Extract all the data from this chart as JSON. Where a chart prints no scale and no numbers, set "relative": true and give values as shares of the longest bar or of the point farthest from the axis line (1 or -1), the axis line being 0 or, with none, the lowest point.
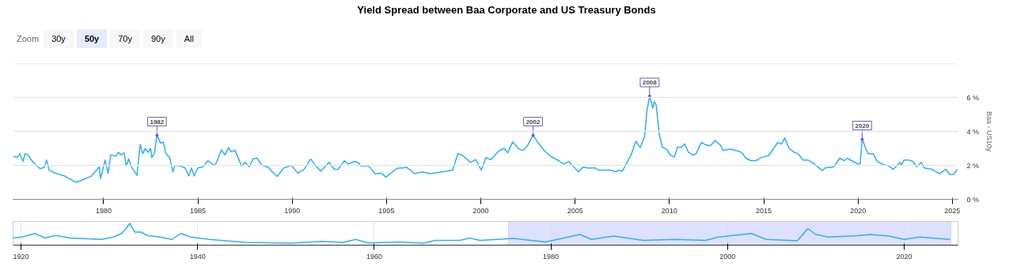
{
  "chart_data": [
    {
      "type": "line",
      "title": "Yield Spread between Baa Corporate and US Treasury Bonds",
      "ylabel": "Baa - US10y",
      "annotations": [
        "Zoom",
        "30y",
        "50y",
        "70y",
        "90y",
        "All",
        {
          "text": "1982",
          "x": 1982.83,
          "y": 3.77
        },
        {
          "text": "2002",
          "x": 2002.77,
          "y": 3.77
        },
        {
          "text": "2008",
          "x": 2008.95,
          "y": 6.08
        },
        {
          "text": "2020",
          "x": 2020.22,
          "y": 3.54
        }
      ],
      "series": [
        {
          "color": "#2caffe",
          "x": [
            1975.22,
            1975.42,
            1975.56,
            1975.73,
            1975.83,
            1976.0,
            1976.17,
            1976.44,
            1976.64,
            1976.85,
            1976.98,
            1977.12,
            1977.53,
            1977.93,
            1978.21,
            1978.55,
            1978.89,
            1979.36,
            1979.77,
            1979.84,
            1980.08,
            1980.24,
            1980.38,
            1980.65,
            1980.79,
            1980.92,
            1981.09,
            1981.2,
            1981.33,
            1981.47,
            1981.6,
            1981.77,
            1981.94,
            1982.08,
            1982.21,
            1982.35,
            1982.49,
            1982.55,
            1982.69,
            1982.83,
            1983.03,
            1983.17,
            1983.3,
            1983.51,
            1983.67,
            1983.78,
            1984.05,
            1984.32,
            1984.52,
            1984.66,
            1984.8,
            1985.0,
            1985.27,
            1985.54,
            1985.82,
            1985.95,
            1986.25,
            1986.43,
            1986.63,
            1986.77,
            1986.97,
            1987.31,
            1987.51,
            1987.72,
            1987.92,
            1988.13,
            1988.4,
            1988.74,
            1988.94,
            1989.21,
            1989.55,
            1989.96,
            1990.3,
            1990.64,
            1990.98,
            1991.25,
            1991.52,
            1991.96,
            1992.23,
            1992.43,
            1992.77,
            1992.97,
            1993.31,
            1993.51,
            1993.65,
            1994.05,
            1994.39,
            1994.73,
            1994.97,
            1995.27,
            1995.54,
            1996.08,
            1996.49,
            1996.89,
            1997.3,
            1997.97,
            1998.51,
            1998.78,
            1998.99,
            1999.46,
            1999.73,
            2000.03,
            2000.27,
            2000.54,
            2000.95,
            2001.24,
            2001.42,
            2001.69,
            2002.03,
            2002.23,
            2002.43,
            2002.77,
            2003.11,
            2003.38,
            2003.65,
            2004.12,
            2004.39,
            2004.66,
            2005.18,
            2005.41,
            2005.68,
            2006.08,
            2006.22,
            2006.89,
            2007.16,
            2007.3,
            2007.5,
            2007.7,
            2007.97,
            2008.22,
            2008.45,
            2008.68,
            2008.81,
            2008.95,
            2009.12,
            2009.19,
            2009.3,
            2009.46,
            2009.62,
            2009.86,
            2010.03,
            2010.27,
            2010.43,
            2010.61,
            2010.81,
            2011.01,
            2011.22,
            2011.42,
            2011.69,
            2011.89,
            2012.16,
            2012.43,
            2012.7,
            2012.84,
            2013.24,
            2013.65,
            2013.85,
            2014.05,
            2014.32,
            2014.59,
            2014.86,
            2015.27,
            2015.74,
            2015.95,
            2016.11,
            2016.35,
            2016.62,
            2016.82,
            2017.09,
            2017.36,
            2017.64,
            2018.11,
            2018.24,
            2018.72,
            2019.03,
            2019.26,
            2019.43,
            2019.66,
            2020.0,
            2020.11,
            2020.22,
            2020.41,
            2020.54,
            2020.81,
            2021.01,
            2021.28,
            2021.62,
            2021.86,
            2022.16,
            2022.23,
            2022.3,
            2022.43,
            2022.7,
            2022.91,
            2023.11,
            2023.35,
            2023.51,
            2023.92,
            2024.32,
            2024.66,
            2024.86,
            2025.07,
            2025.27
          ],
          "values": [
            2.54,
            2.46,
            2.69,
            2.23,
            2.69,
            2.62,
            2.31,
            2.0,
            1.8,
            1.88,
            2.31,
            1.69,
            1.51,
            1.38,
            1.2,
            1.0,
            1.15,
            1.38,
            1.92,
            1.23,
            2.31,
            1.54,
            2.62,
            2.54,
            2.77,
            2.62,
            2.74,
            1.97,
            2.38,
            1.92,
            1.69,
            1.42,
            3.23,
            2.69,
            3.0,
            2.77,
            3.0,
            2.46,
            2.69,
            3.77,
            3.31,
            3.38,
            2.69,
            2.46,
            1.62,
            2.0,
            1.97,
            1.85,
            1.38,
            1.85,
            1.38,
            1.85,
            1.92,
            2.28,
            2.03,
            2.08,
            2.92,
            2.62,
            3.05,
            2.8,
            2.89,
            1.97,
            2.18,
            1.92,
            2.38,
            2.43,
            2.0,
            1.88,
            1.62,
            1.35,
            1.85,
            2.0,
            1.54,
            1.77,
            2.38,
            1.97,
            1.66,
            2.18,
            1.77,
            1.77,
            2.28,
            2.08,
            2.23,
            2.15,
            1.97,
            1.97,
            1.51,
            1.54,
            1.31,
            1.57,
            1.82,
            1.88,
            1.51,
            1.62,
            1.51,
            1.62,
            1.72,
            2.69,
            2.62,
            2.18,
            2.34,
            1.72,
            2.46,
            2.34,
            2.85,
            3.0,
            2.74,
            3.38,
            2.95,
            2.89,
            3.08,
            3.77,
            3.23,
            2.85,
            2.58,
            2.28,
            2.08,
            2.23,
            1.62,
            1.89,
            1.85,
            1.85,
            1.72,
            1.72,
            1.62,
            1.72,
            1.66,
            2.08,
            2.62,
            3.42,
            3.05,
            3.69,
            5.23,
            6.08,
            5.38,
            5.77,
            5.54,
            3.85,
            3.08,
            2.95,
            2.62,
            2.49,
            3.08,
            3.05,
            3.26,
            2.77,
            2.62,
            2.69,
            3.35,
            3.23,
            3.15,
            3.46,
            3.2,
            2.89,
            2.95,
            2.85,
            2.74,
            2.43,
            2.28,
            2.28,
            2.46,
            2.58,
            3.35,
            3.26,
            3.62,
            3.0,
            2.77,
            2.69,
            2.31,
            2.31,
            2.12,
            1.69,
            1.85,
            1.92,
            2.43,
            2.28,
            2.43,
            2.28,
            2.08,
            2.08,
            3.54,
            3.0,
            2.69,
            2.69,
            2.23,
            2.08,
            1.97,
            1.77,
            2.08,
            2.18,
            2.0,
            2.31,
            2.31,
            2.23,
            1.92,
            2.18,
            1.85,
            1.77,
            1.51,
            1.77,
            1.46,
            1.46,
            1.77
          ]
        }
      ],
      "xlim": [
        1975.2,
        2025.3
      ],
      "xticks": [
        1980,
        1985,
        1990,
        1995,
        2000,
        2005,
        2010,
        2015,
        2020,
        2025
      ],
      "ylim": [
        0,
        8
      ],
      "yticks": [
        {
          "value": 0,
          "label": "0 %"
        },
        {
          "value": 2,
          "label": "2 %"
        },
        {
          "value": 4,
          "label": "4 %"
        },
        {
          "value": 6,
          "label": "6 %"
        },
        {
          "value": 8,
          "label": null
        }
      ],
      "grid": "y"
    },
    {
      "type": "line",
      "relative": true,
      "series": [
        {
          "color": "#2caffe",
          "x": [
            1919.1,
            1920.1,
            1921.6,
            1922.7,
            1923.9,
            1925.6,
            1929.1,
            1930.5,
            1931.4,
            1931.9,
            1932.3,
            1932.9,
            1933.6,
            1934.3,
            1935.7,
            1937.1,
            1938.1,
            1939.2,
            1941.3,
            1945.4,
            1950.6,
            1954.1,
            1956.5,
            1957.9,
            1959.3,
            1962.8,
            1965.6,
            1966.9,
            1969.7,
            1970.8,
            1972.0,
            1975.8,
            1977.7,
            1979.4,
            1983.3,
            1984.6,
            1987.1,
            1990.5,
            1994.0,
            1997.5,
            1999.0,
            2002.7,
            2004.4,
            2007.9,
            2009.1,
            2010.0,
            2011.4,
            2014.8,
            2016.1,
            2018.3,
            2020.0,
            2021.8,
            2025.2
          ],
          "values": [
            0.26,
            0.31,
            0.49,
            0.26,
            0.39,
            0.26,
            0.19,
            0.31,
            0.49,
            0.74,
            1.0,
            0.56,
            0.56,
            0.39,
            0.31,
            0.19,
            0.49,
            0.31,
            0.19,
            0.04,
            0.0,
            0.09,
            0.04,
            0.19,
            0.01,
            0.06,
            0.0,
            0.14,
            0.14,
            0.26,
            0.14,
            0.24,
            0.14,
            0.06,
            0.44,
            0.19,
            0.36,
            0.14,
            0.19,
            0.14,
            0.31,
            0.49,
            0.19,
            0.12,
            0.74,
            0.44,
            0.31,
            0.38,
            0.44,
            0.36,
            0.19,
            0.31,
            0.19
          ]
        }
      ],
      "xlim": [
        1919.1,
        2026.1
      ],
      "xticks": [
        1920,
        1940,
        1960,
        1980,
        2000,
        2020
      ],
      "bands": [
        {
          "axis": "x",
          "from": 1975.2,
          "to": 2025.3,
          "color": "#d4dafc"
        }
      ],
      "grid": "x"
    }
  ]
}
